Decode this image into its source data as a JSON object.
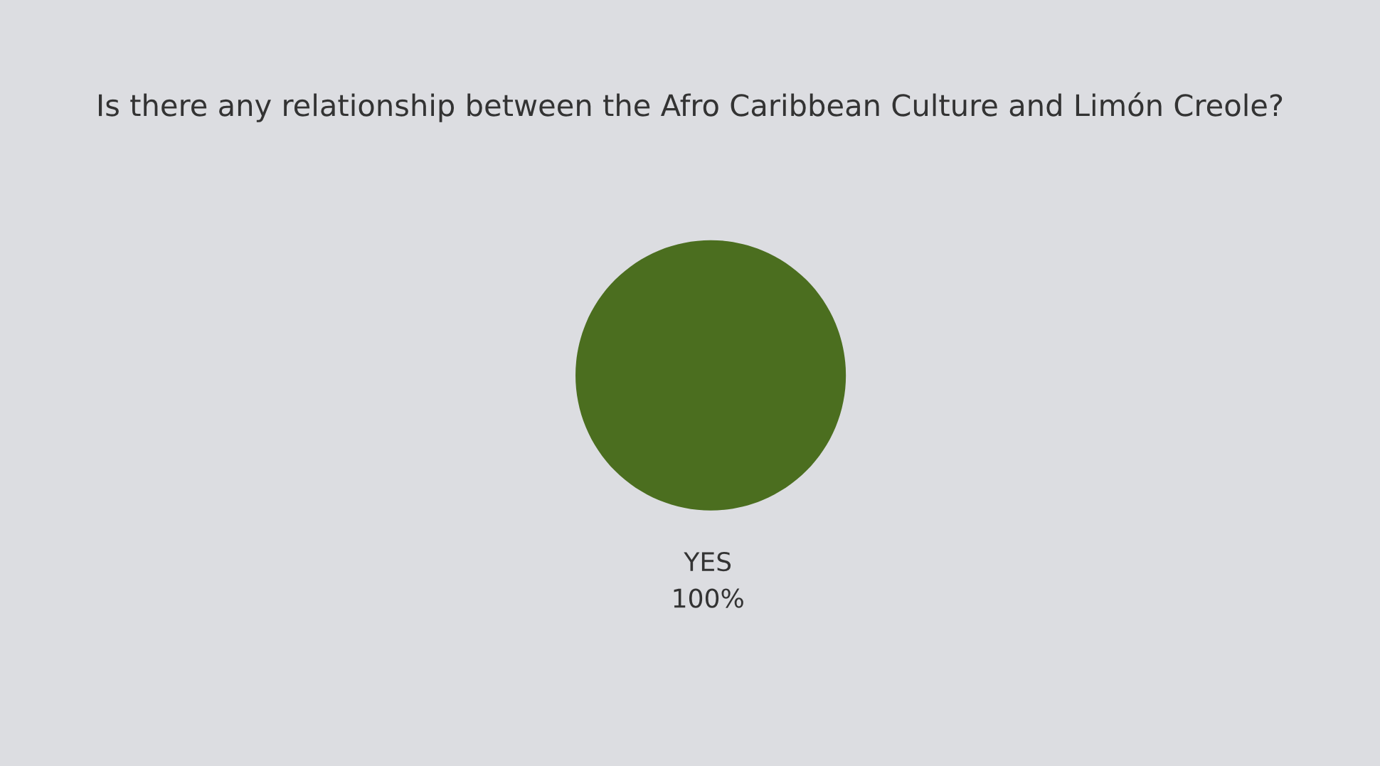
{
  "chart_data": {
    "type": "pie",
    "title": "Is there any relationship between the Afro Caribbean Culture and Limón Creole?",
    "categories": [
      "YES"
    ],
    "values": [
      100
    ],
    "colors": [
      "#4b6e1f"
    ],
    "value_labels": [
      "100%"
    ]
  }
}
